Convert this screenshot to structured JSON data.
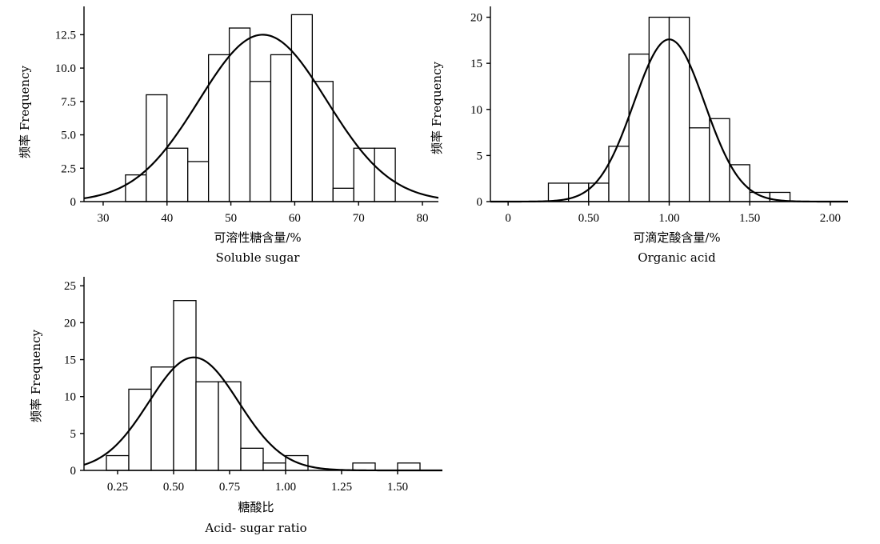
{
  "chart_data": [
    {
      "type": "bar",
      "title": "",
      "ylabel": "频率 Frequency",
      "xlabel_cn": "可溶性糖含量/%",
      "xlabel_en": "Soluble sugar",
      "xlim": [
        27,
        82.5
      ],
      "ylim": [
        0,
        14.5
      ],
      "x_ticks": [
        30,
        40,
        50,
        60,
        70,
        80
      ],
      "x_tick_labels": [
        "30",
        "40",
        "50",
        "60",
        "70",
        "80"
      ],
      "y_ticks": [
        0,
        2.5,
        5,
        7.5,
        10,
        12.5
      ],
      "y_tick_labels": [
        "0",
        "2.5",
        "5.0",
        "7.5",
        "10.0",
        "12.5"
      ],
      "bin_edges": [
        33.5,
        36.75,
        40,
        43.25,
        46.5,
        49.75,
        53,
        56.25,
        59.5,
        62.75,
        66,
        69.25,
        72.5,
        75.75
      ],
      "values": [
        2,
        8,
        4,
        3,
        11,
        13,
        9,
        11,
        14,
        9,
        1,
        4,
        4
      ],
      "normal_fit": {
        "mean": 55.0,
        "sd": 10.0,
        "peak": 12.5
      }
    },
    {
      "type": "bar",
      "title": "",
      "ylabel": "频率 Frequency",
      "xlabel_cn": "可滴定酸含量/%",
      "xlabel_en": "Organic acid",
      "xlim": [
        -0.11,
        2.11
      ],
      "ylim": [
        0,
        21
      ],
      "x_ticks": [
        0,
        0.5,
        1.0,
        1.5,
        2.0
      ],
      "x_tick_labels": [
        "0",
        "0.50",
        "1.00",
        "1.50",
        "2.00"
      ],
      "y_ticks": [
        0,
        5,
        10,
        15,
        20
      ],
      "y_tick_labels": [
        "0",
        "5",
        "10",
        "15",
        "20"
      ],
      "bin_edges": [
        0.25,
        0.375,
        0.5,
        0.625,
        0.75,
        0.875,
        1.0,
        1.125,
        1.25,
        1.375,
        1.5,
        1.625,
        1.75
      ],
      "values": [
        2,
        2,
        2,
        6,
        16,
        20,
        20,
        8,
        9,
        4,
        1,
        1
      ],
      "normal_fit": {
        "mean": 1.0,
        "sd": 0.22,
        "peak": 17.6
      }
    },
    {
      "type": "bar",
      "title": "",
      "ylabel": "频率 Frequency",
      "xlabel_cn": "糖酸比",
      "xlabel_en": "Acid- sugar ratio",
      "xlim": [
        0.1,
        1.7
      ],
      "ylim": [
        0,
        26
      ],
      "x_ticks": [
        0.25,
        0.5,
        0.75,
        1.0,
        1.25,
        1.5
      ],
      "x_tick_labels": [
        "0.25",
        "0.50",
        "0.75",
        "1.00",
        "1.25",
        "1.50"
      ],
      "y_ticks": [
        0,
        5,
        10,
        15,
        20,
        25
      ],
      "y_tick_labels": [
        "0",
        "5",
        "10",
        "15",
        "20",
        "25"
      ],
      "bin_edges": [
        0.2,
        0.3,
        0.4,
        0.5,
        0.6,
        0.7,
        0.8,
        0.9,
        1.0,
        1.1,
        1.2,
        1.3,
        1.4,
        1.5,
        1.6
      ],
      "values": [
        2,
        11,
        14,
        23,
        12,
        12,
        3,
        1,
        2,
        0,
        0,
        1,
        0,
        1
      ],
      "normal_fit": {
        "mean": 0.59,
        "sd": 0.2,
        "peak": 15.3
      }
    }
  ]
}
